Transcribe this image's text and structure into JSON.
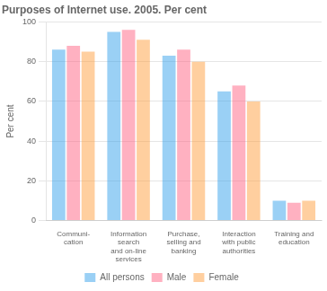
{
  "chart_data": {
    "type": "bar",
    "title": "Purposes of Internet use. 2005. Per cent",
    "ylabel": "Per cent",
    "categories": [
      "Communi-\ncation",
      "Information\nsearch\nand on-line\nservices",
      "Purchase,\nselling and\nbanking",
      "Interaction\nwith public\nauthorities",
      "Training and\neducation"
    ],
    "series": [
      {
        "name": "All persons",
        "values": [
          86,
          95,
          83,
          65,
          10
        ]
      },
      {
        "name": "Male",
        "values": [
          88,
          96,
          86,
          68,
          9
        ]
      },
      {
        "name": "Female",
        "values": [
          85,
          91,
          80,
          60,
          10
        ]
      }
    ],
    "ylim": [
      0,
      100
    ],
    "yticks": [
      0,
      20,
      40,
      60,
      80,
      100
    ],
    "grid": true,
    "legend": "bottom"
  }
}
